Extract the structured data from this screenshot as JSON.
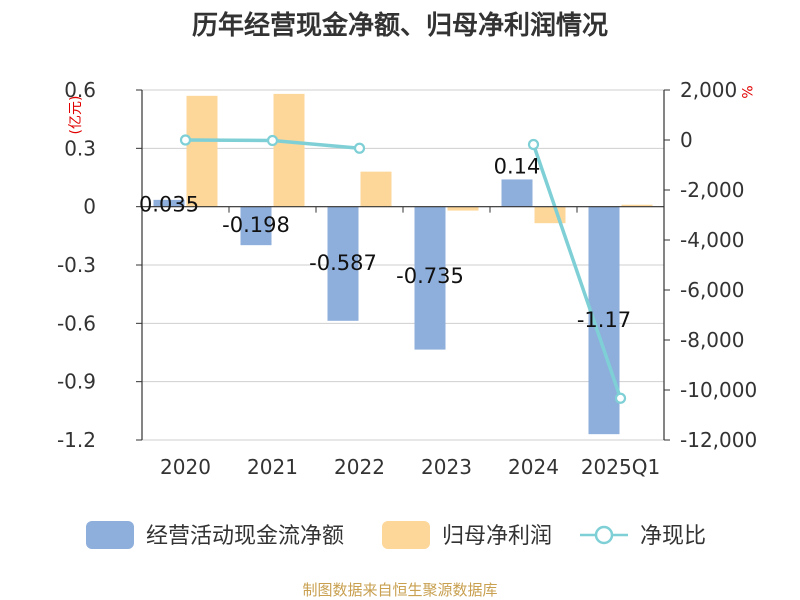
{
  "chart_data": {
    "type": "bar+line",
    "title": "历年经营现金净额、归母净利润情况",
    "categories": [
      "2020",
      "2021",
      "2022",
      "2023",
      "2024",
      "2025Q1"
    ],
    "left_axis": {
      "unit": "(亿元)",
      "ylim": [
        -1.2,
        0.6
      ],
      "ticks": [
        "0.6",
        "0.3",
        "0",
        "-0.3",
        "-0.6",
        "-0.9",
        "-1.2"
      ],
      "tick_values": [
        0.6,
        0.3,
        0,
        -0.3,
        -0.6,
        -0.9,
        -1.2
      ]
    },
    "right_axis": {
      "unit": "%",
      "ylim": [
        -12000,
        2000
      ],
      "ticks": [
        "2,000",
        "0",
        "-2,000",
        "-4,000",
        "-6,000",
        "-8,000",
        "-10,000",
        "-12,000"
      ],
      "tick_values": [
        2000,
        0,
        -2000,
        -4000,
        -6000,
        -8000,
        -10000,
        -12000
      ]
    },
    "series": [
      {
        "name": "经营活动现金流净额",
        "type": "bar",
        "axis": "left",
        "color": "#8eaedb",
        "values": [
          0.035,
          -0.198,
          -0.587,
          -0.735,
          0.14,
          -1.17
        ],
        "labels": [
          "0.035",
          "-0.198",
          "-0.587",
          "-0.735",
          "0.14",
          "-1.17"
        ]
      },
      {
        "name": "归母净利润",
        "type": "bar",
        "axis": "left",
        "color": "#fdd699",
        "values": [
          0.57,
          0.58,
          0.18,
          -0.02,
          -0.085,
          0.01
        ]
      },
      {
        "name": "净现比",
        "type": "line",
        "axis": "right",
        "color": "#7fd0d6",
        "values": [
          0,
          -20,
          -330,
          null,
          -180,
          -10330
        ]
      }
    ],
    "source": "制图数据来自恒生聚源数据库"
  }
}
